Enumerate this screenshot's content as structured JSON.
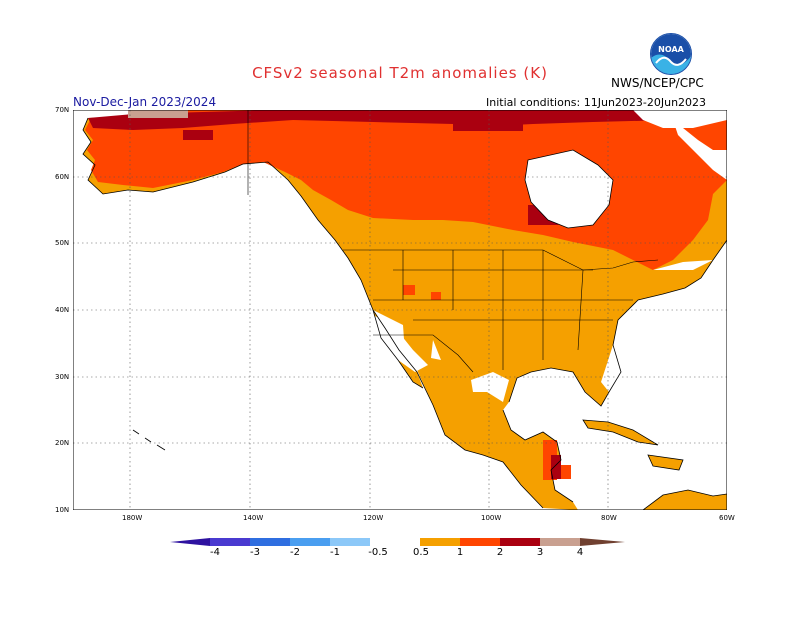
{
  "header": {
    "title": "CFSv2 seasonal T2m anomalies (K)",
    "agency": "NWS/NCEP/CPC",
    "season": "Nov-Dec-Jan 2023/2024",
    "initial_conditions": "Initial conditions: 11Jun2023-20Jun2023"
  },
  "logo": {
    "text": "NOAA",
    "colors": {
      "top": "#1a4fa8",
      "bottom": "#3ab2e6"
    }
  },
  "map": {
    "projection": "lat-lon",
    "lat_range": [
      10,
      70
    ],
    "lon_range": [
      -190,
      -60
    ],
    "lat_labels": [
      "70N",
      "60N",
      "50N",
      "40N",
      "30N",
      "20N",
      "10N"
    ],
    "lon_labels": [
      "180W",
      "140W",
      "120W",
      "100W",
      "80W",
      "60W"
    ],
    "anomaly_colors": {
      "0.5-1": "#f5a000",
      "1-2": "#ff4500",
      "2-3": "#aa0010",
      "3-4": "#c9a090"
    }
  },
  "colorbar": {
    "labels": [
      "-4",
      "-3",
      "-2",
      "-1",
      "-0.5",
      "0.5",
      "1",
      "2",
      "3",
      "4"
    ],
    "colors": [
      "#2e12a0",
      "#4a3ad0",
      "#2f6ee0",
      "#4a9ef0",
      "#8cc8f8",
      "#ffffff",
      "#f5a000",
      "#ff4500",
      "#aa0010",
      "#c9a090",
      "#704030"
    ]
  }
}
